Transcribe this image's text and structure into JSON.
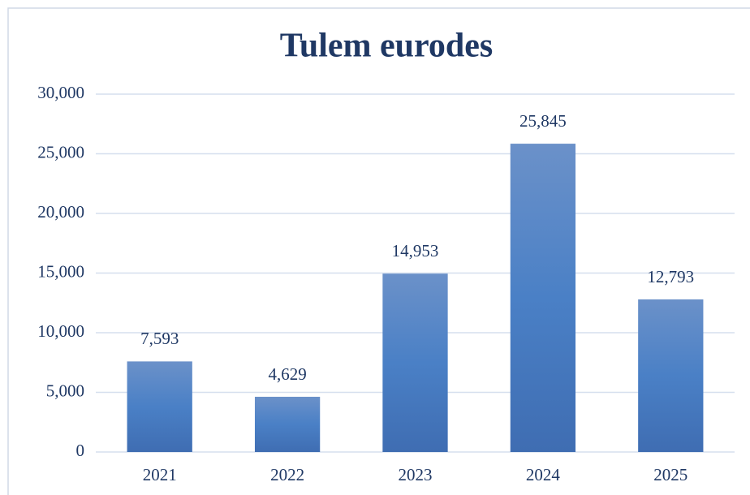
{
  "chart_data": {
    "type": "bar",
    "title": "Tulem eurodes",
    "categories": [
      "2021",
      "2022",
      "2023",
      "2024",
      "2025"
    ],
    "values": [
      7593,
      4629,
      14953,
      25845,
      12793
    ],
    "value_labels": [
      "7,593",
      "4,629",
      "14,953",
      "25,845",
      "12,793"
    ],
    "color": "#4a7ec2",
    "ylim": [
      0,
      30000
    ],
    "yticks": [
      0,
      {
        "value": 5000,
        "label": "5,000"
      },
      {
        "value": 10000,
        "label": "10,000"
      },
      {
        "value": 15000,
        "label": "15,000"
      },
      {
        "value": 20000,
        "label": "20,000"
      },
      {
        "value": 25000,
        "label": "25,000"
      },
      {
        "value": 30000,
        "label": "30,000"
      }
    ],
    "grid": true
  }
}
